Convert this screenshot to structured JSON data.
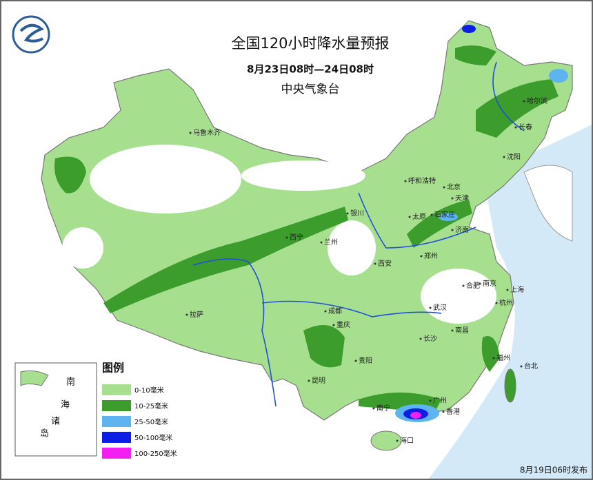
{
  "header": {
    "title": "全国120小时降水量预报",
    "subtitle": "8月23日08时—24日08时",
    "issuer": "中央气象台"
  },
  "legend": {
    "title": "图例",
    "items": [
      {
        "label": "0-10毫米",
        "color": "#a6e08f"
      },
      {
        "label": "10-25毫米",
        "color": "#3c9d2c"
      },
      {
        "label": "25-50毫米",
        "color": "#5eb4f0"
      },
      {
        "label": "50-100毫米",
        "color": "#0a1ee6"
      },
      {
        "label": "100-250毫米",
        "color": "#f51ef0"
      }
    ]
  },
  "cities": [
    "乌鲁木齐",
    "哈尔滨",
    "长春",
    "沈阳",
    "呼和浩特",
    "北京",
    "天津",
    "银川",
    "太原",
    "石家庄",
    "济南",
    "西宁",
    "兰州",
    "郑州",
    "西安",
    "合肥",
    "南京",
    "上海",
    "拉萨",
    "成都",
    "武汉",
    "杭州",
    "重庆",
    "南昌",
    "长沙",
    "福州",
    "贵阳",
    "昆明",
    "台北",
    "广州",
    "南宁",
    "香港",
    "海口"
  ],
  "inset": {
    "labels": [
      "南",
      "海",
      "诸",
      "岛"
    ]
  },
  "footer": "8月19日06时发布"
}
